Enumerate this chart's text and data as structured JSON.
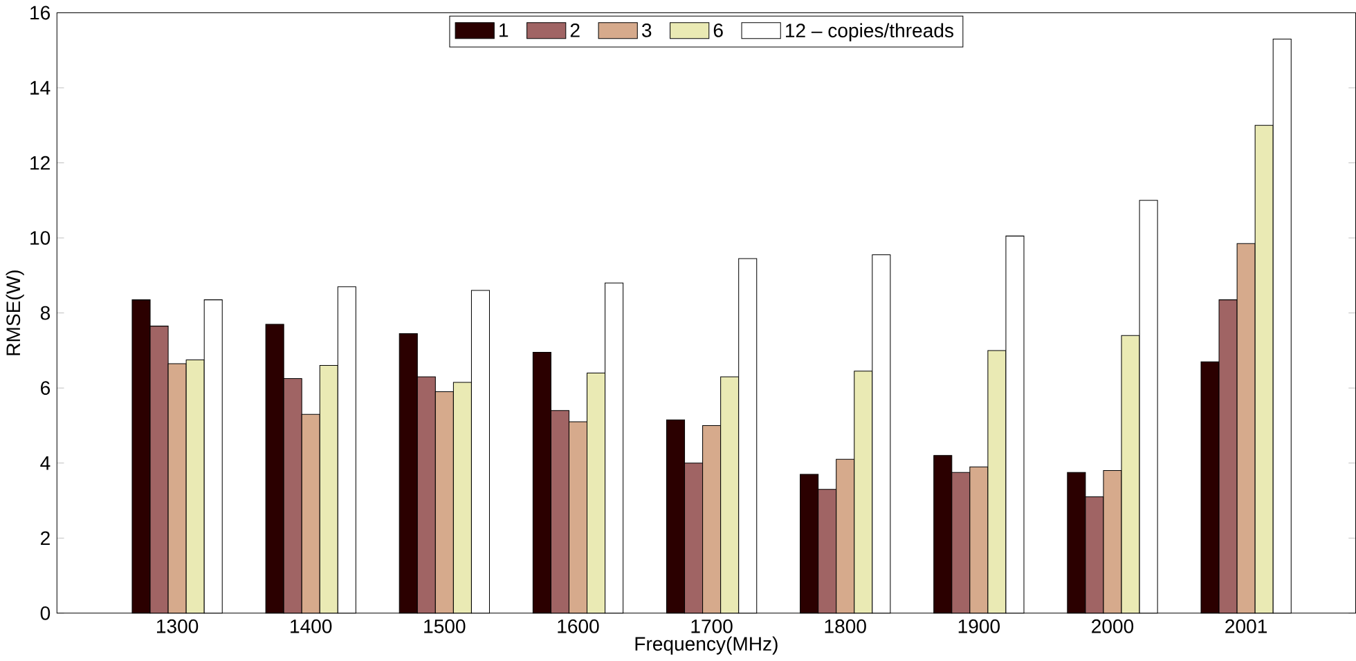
{
  "chart_data": {
    "type": "bar",
    "xlabel": "Frequency(MHz)",
    "ylabel": "RMSE(W)",
    "categories": [
      "1300",
      "1400",
      "1500",
      "1600",
      "1700",
      "1800",
      "1900",
      "2000",
      "2001"
    ],
    "ylim": [
      0,
      16
    ],
    "yticks": [
      0,
      2,
      4,
      6,
      8,
      10,
      12,
      14,
      16
    ],
    "legend": "top",
    "series": [
      {
        "name": "1",
        "color": "#2b0000",
        "values": [
          8.35,
          7.7,
          7.45,
          6.95,
          5.15,
          3.7,
          4.2,
          3.75,
          6.7
        ]
      },
      {
        "name": "2",
        "color": "#a06464",
        "values": [
          7.65,
          6.25,
          6.3,
          5.4,
          4.0,
          3.3,
          3.75,
          3.1,
          8.35
        ]
      },
      {
        "name": "3",
        "color": "#d6aa8c",
        "values": [
          6.65,
          5.3,
          5.9,
          5.1,
          5.0,
          4.1,
          3.9,
          3.8,
          9.85
        ]
      },
      {
        "name": "6",
        "color": "#eaeab4",
        "values": [
          6.75,
          6.6,
          6.15,
          6.4,
          6.3,
          6.45,
          7.0,
          7.4,
          13.0
        ]
      },
      {
        "name": "12 – copies/threads",
        "color": "#ffffff",
        "values": [
          8.35,
          8.7,
          8.6,
          8.8,
          9.45,
          9.55,
          10.05,
          11.0,
          15.3
        ]
      }
    ]
  }
}
